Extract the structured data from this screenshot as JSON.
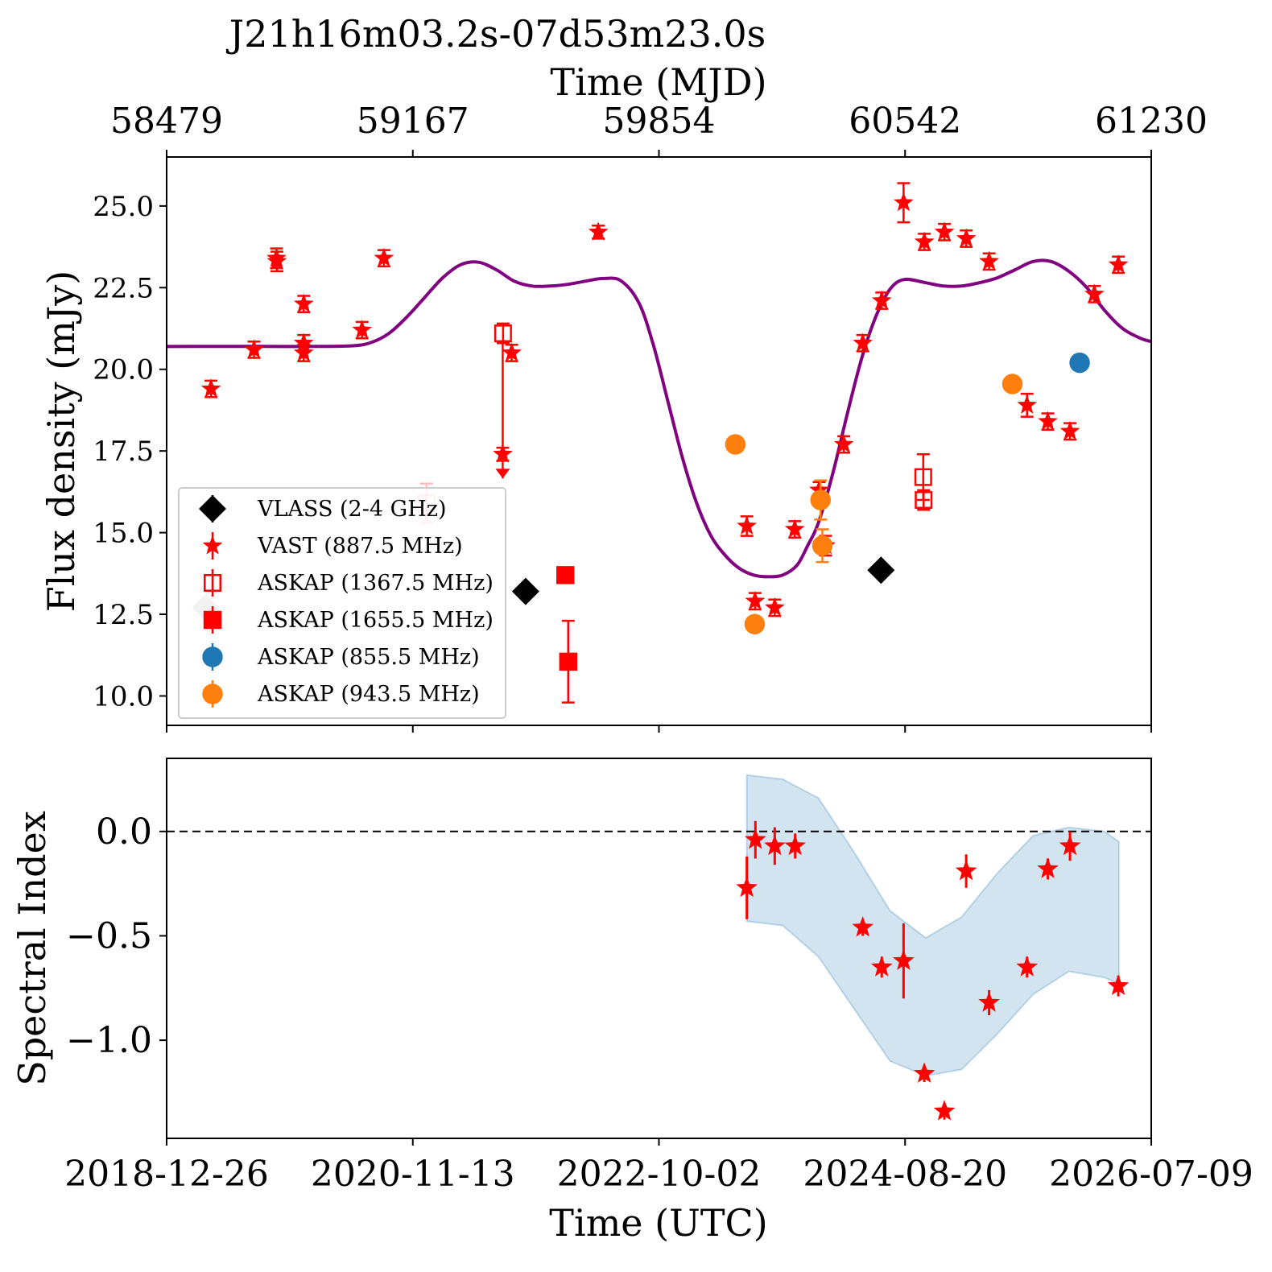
{
  "chart_data": [
    {
      "type": "scatter",
      "title": "J21h16m03.2s-07d53m23.0s",
      "x2label": "Time (MJD)",
      "x2ticks": [
        "58479",
        "59167",
        "59854",
        "60542",
        "61230"
      ],
      "ylabel": "Flux density (mJy)",
      "ylim": [
        9.1,
        26.5
      ],
      "yticks": [
        10.0,
        12.5,
        15.0,
        17.5,
        20.0,
        22.5,
        25.0
      ],
      "legend_position": "lower-left",
      "series": [
        {
          "name": "VLASS (2-4 GHz)",
          "marker": "diamond",
          "color": "#000000",
          "points": [
            {
              "x": 59482,
              "y": 13.2
            },
            {
              "x": 60475,
              "y": 13.85
            },
            {
              "x": 58588,
              "y": 12.7,
              "faded": true
            }
          ]
        },
        {
          "name": "VAST (887.5 MHz)",
          "marker": "star",
          "color": "#ff0000",
          "points": [
            {
              "x": 58603,
              "y": 19.4,
              "err": 0.25
            },
            {
              "x": 58723,
              "y": 20.6,
              "err": 0.25
            },
            {
              "x": 58786,
              "y": 23.4,
              "err": 0.3
            },
            {
              "x": 58787,
              "y": 23.3,
              "err": 0.3
            },
            {
              "x": 58862,
              "y": 22.0,
              "err": 0.25
            },
            {
              "x": 58862,
              "y": 20.8,
              "err": 0.25
            },
            {
              "x": 58862,
              "y": 20.5,
              "err": 0.25
            },
            {
              "x": 59025,
              "y": 21.2,
              "err": 0.25
            },
            {
              "x": 59086,
              "y": 23.4,
              "err": 0.25
            },
            {
              "x": 59418,
              "y": 17.4,
              "err": 0.2,
              "upper_limit_from": 20.9
            },
            {
              "x": 59443,
              "y": 20.5,
              "err": 0.25
            },
            {
              "x": 59685,
              "y": 24.2,
              "err": 0.2
            },
            {
              "x": 60100,
              "y": 15.2,
              "err": 0.3
            },
            {
              "x": 60123,
              "y": 12.9,
              "err": 0.25
            },
            {
              "x": 60178,
              "y": 12.7,
              "err": 0.25
            },
            {
              "x": 60234,
              "y": 15.1,
              "err": 0.25
            },
            {
              "x": 60302,
              "y": 16.3,
              "err": 0.25
            },
            {
              "x": 60320,
              "y": 14.6,
              "err": 0.3
            },
            {
              "x": 60371,
              "y": 17.7,
              "err": 0.25
            },
            {
              "x": 60424,
              "y": 20.8,
              "err": 0.25
            },
            {
              "x": 60477,
              "y": 22.1,
              "err": 0.25
            },
            {
              "x": 60538,
              "y": 25.1,
              "err": 0.6
            },
            {
              "x": 60596,
              "y": 23.9,
              "err": 0.25
            },
            {
              "x": 60652,
              "y": 24.2,
              "err": 0.25
            },
            {
              "x": 60713,
              "y": 24.0,
              "err": 0.25
            },
            {
              "x": 60777,
              "y": 23.3,
              "err": 0.25
            },
            {
              "x": 60883,
              "y": 18.9,
              "err": 0.35
            },
            {
              "x": 60941,
              "y": 18.4,
              "err": 0.25
            },
            {
              "x": 61003,
              "y": 18.1,
              "err": 0.25
            },
            {
              "x": 61071,
              "y": 22.3,
              "err": 0.25
            },
            {
              "x": 61138,
              "y": 23.2,
              "err": 0.25
            }
          ]
        },
        {
          "name": "ASKAP (1367.5 MHz)",
          "marker": "square-open",
          "color": "#ff0000",
          "points": [
            {
              "x": 59419,
              "y": 21.1,
              "err": 0.3
            },
            {
              "x": 60593,
              "y": 16.7,
              "err": 0.7
            },
            {
              "x": 60594,
              "y": 16.0,
              "err": 0.3
            },
            {
              "x": 59205,
              "y": 15.9,
              "err": 0.6,
              "faded": true
            }
          ]
        },
        {
          "name": "ASKAP (1655.5 MHz)",
          "marker": "square",
          "color": "#ff0000",
          "points": [
            {
              "x": 59593,
              "y": 13.7,
              "err": 0.2
            },
            {
              "x": 59601,
              "y": 11.05,
              "err": 1.25
            }
          ]
        },
        {
          "name": "ASKAP (855.5 MHz)",
          "marker": "circle",
          "color": "#1f77b4",
          "points": [
            {
              "x": 61030,
              "y": 20.2,
              "err": 0.2
            }
          ]
        },
        {
          "name": "ASKAP (943.5 MHz)",
          "marker": "circle",
          "color": "#ff7f0e",
          "points": [
            {
              "x": 60068,
              "y": 17.7,
              "err": 0.2
            },
            {
              "x": 60122,
              "y": 12.2,
              "err": 0.2
            },
            {
              "x": 60306,
              "y": 16.0,
              "err": 0.6
            },
            {
              "x": 60311,
              "y": 14.6,
              "err": 0.5
            },
            {
              "x": 60842,
              "y": 19.55,
              "err": 0.2
            }
          ]
        }
      ],
      "model_curve": {
        "color": "#800080",
        "x": [
          58479,
          58600,
          58750,
          58900,
          59000,
          59050,
          59100,
          59150,
          59200,
          59250,
          59300,
          59350,
          59400,
          59450,
          59500,
          59550,
          59600,
          59650,
          59700,
          59750,
          59800,
          59840,
          59880,
          59920,
          59960,
          60000,
          60040,
          60080,
          60120,
          60160,
          60200,
          60240,
          60270,
          60300,
          60340,
          60380,
          60420,
          60460,
          60500,
          60540,
          60600,
          60650,
          60700,
          60750,
          60800,
          60850,
          60900,
          60950,
          61000,
          61050,
          61100,
          61150,
          61200,
          61230
        ],
        "y": [
          20.7,
          20.7,
          20.7,
          20.7,
          20.72,
          20.82,
          21.1,
          21.6,
          22.2,
          22.8,
          23.2,
          23.28,
          23.05,
          22.7,
          22.55,
          22.55,
          22.6,
          22.7,
          22.78,
          22.7,
          22.0,
          20.7,
          19.0,
          17.3,
          15.9,
          14.9,
          14.3,
          13.9,
          13.7,
          13.65,
          13.7,
          14.0,
          14.6,
          15.3,
          16.8,
          18.6,
          20.3,
          21.6,
          22.45,
          22.75,
          22.65,
          22.55,
          22.55,
          22.65,
          22.8,
          23.05,
          23.3,
          23.3,
          23.0,
          22.5,
          21.8,
          21.25,
          20.95,
          20.85
        ]
      }
    },
    {
      "type": "scatter",
      "ylabel": "Spectral Index",
      "xlabel": "Time (UTC)",
      "ylim": [
        -1.47,
        0.35
      ],
      "yticks": [
        -1.0,
        -0.5,
        0.0
      ],
      "ytick_labels": [
        "−1.0",
        "−0.5",
        "0.0"
      ],
      "xlim": [
        58479,
        61230
      ],
      "xtick_labels": [
        "2018-12-26",
        "2020-11-13",
        "2022-10-02",
        "2024-08-20",
        "2026-07-09"
      ],
      "reference_line": 0.0,
      "band": {
        "color": "#1f77b4",
        "x": [
          60100,
          60200,
          60300,
          60400,
          60500,
          60600,
          60700,
          60800,
          60900,
          61000,
          61100,
          61140
        ],
        "upper": [
          0.27,
          0.25,
          0.16,
          -0.1,
          -0.38,
          -0.51,
          -0.41,
          -0.2,
          -0.02,
          0.02,
          0.0,
          -0.05
        ],
        "lower": [
          -0.43,
          -0.45,
          -0.6,
          -0.85,
          -1.1,
          -1.17,
          -1.14,
          -0.97,
          -0.78,
          -0.67,
          -0.7,
          -0.73
        ]
      },
      "series": [
        {
          "name": "",
          "marker": "star",
          "color": "#ff0000",
          "points": [
            {
              "x": 60100,
              "y": -0.27,
              "err": 0.15
            },
            {
              "x": 60124,
              "y": -0.04,
              "err": 0.09
            },
            {
              "x": 60178,
              "y": -0.07,
              "err": 0.09
            },
            {
              "x": 60235,
              "y": -0.07,
              "err": 0.06
            },
            {
              "x": 60424,
              "y": -0.46,
              "err": 0.04
            },
            {
              "x": 60477,
              "y": -0.65,
              "err": 0.05
            },
            {
              "x": 60538,
              "y": -0.62,
              "err": 0.18
            },
            {
              "x": 60596,
              "y": -1.16,
              "err": 0.04
            },
            {
              "x": 60652,
              "y": -1.34,
              "err": 0.04
            },
            {
              "x": 60713,
              "y": -0.19,
              "err": 0.08
            },
            {
              "x": 60777,
              "y": -0.82,
              "err": 0.06
            },
            {
              "x": 60883,
              "y": -0.65,
              "err": 0.05
            },
            {
              "x": 60941,
              "y": -0.18,
              "err": 0.05
            },
            {
              "x": 61003,
              "y": -0.07,
              "err": 0.07
            },
            {
              "x": 61138,
              "y": -0.74,
              "err": 0.05
            }
          ]
        }
      ]
    }
  ]
}
